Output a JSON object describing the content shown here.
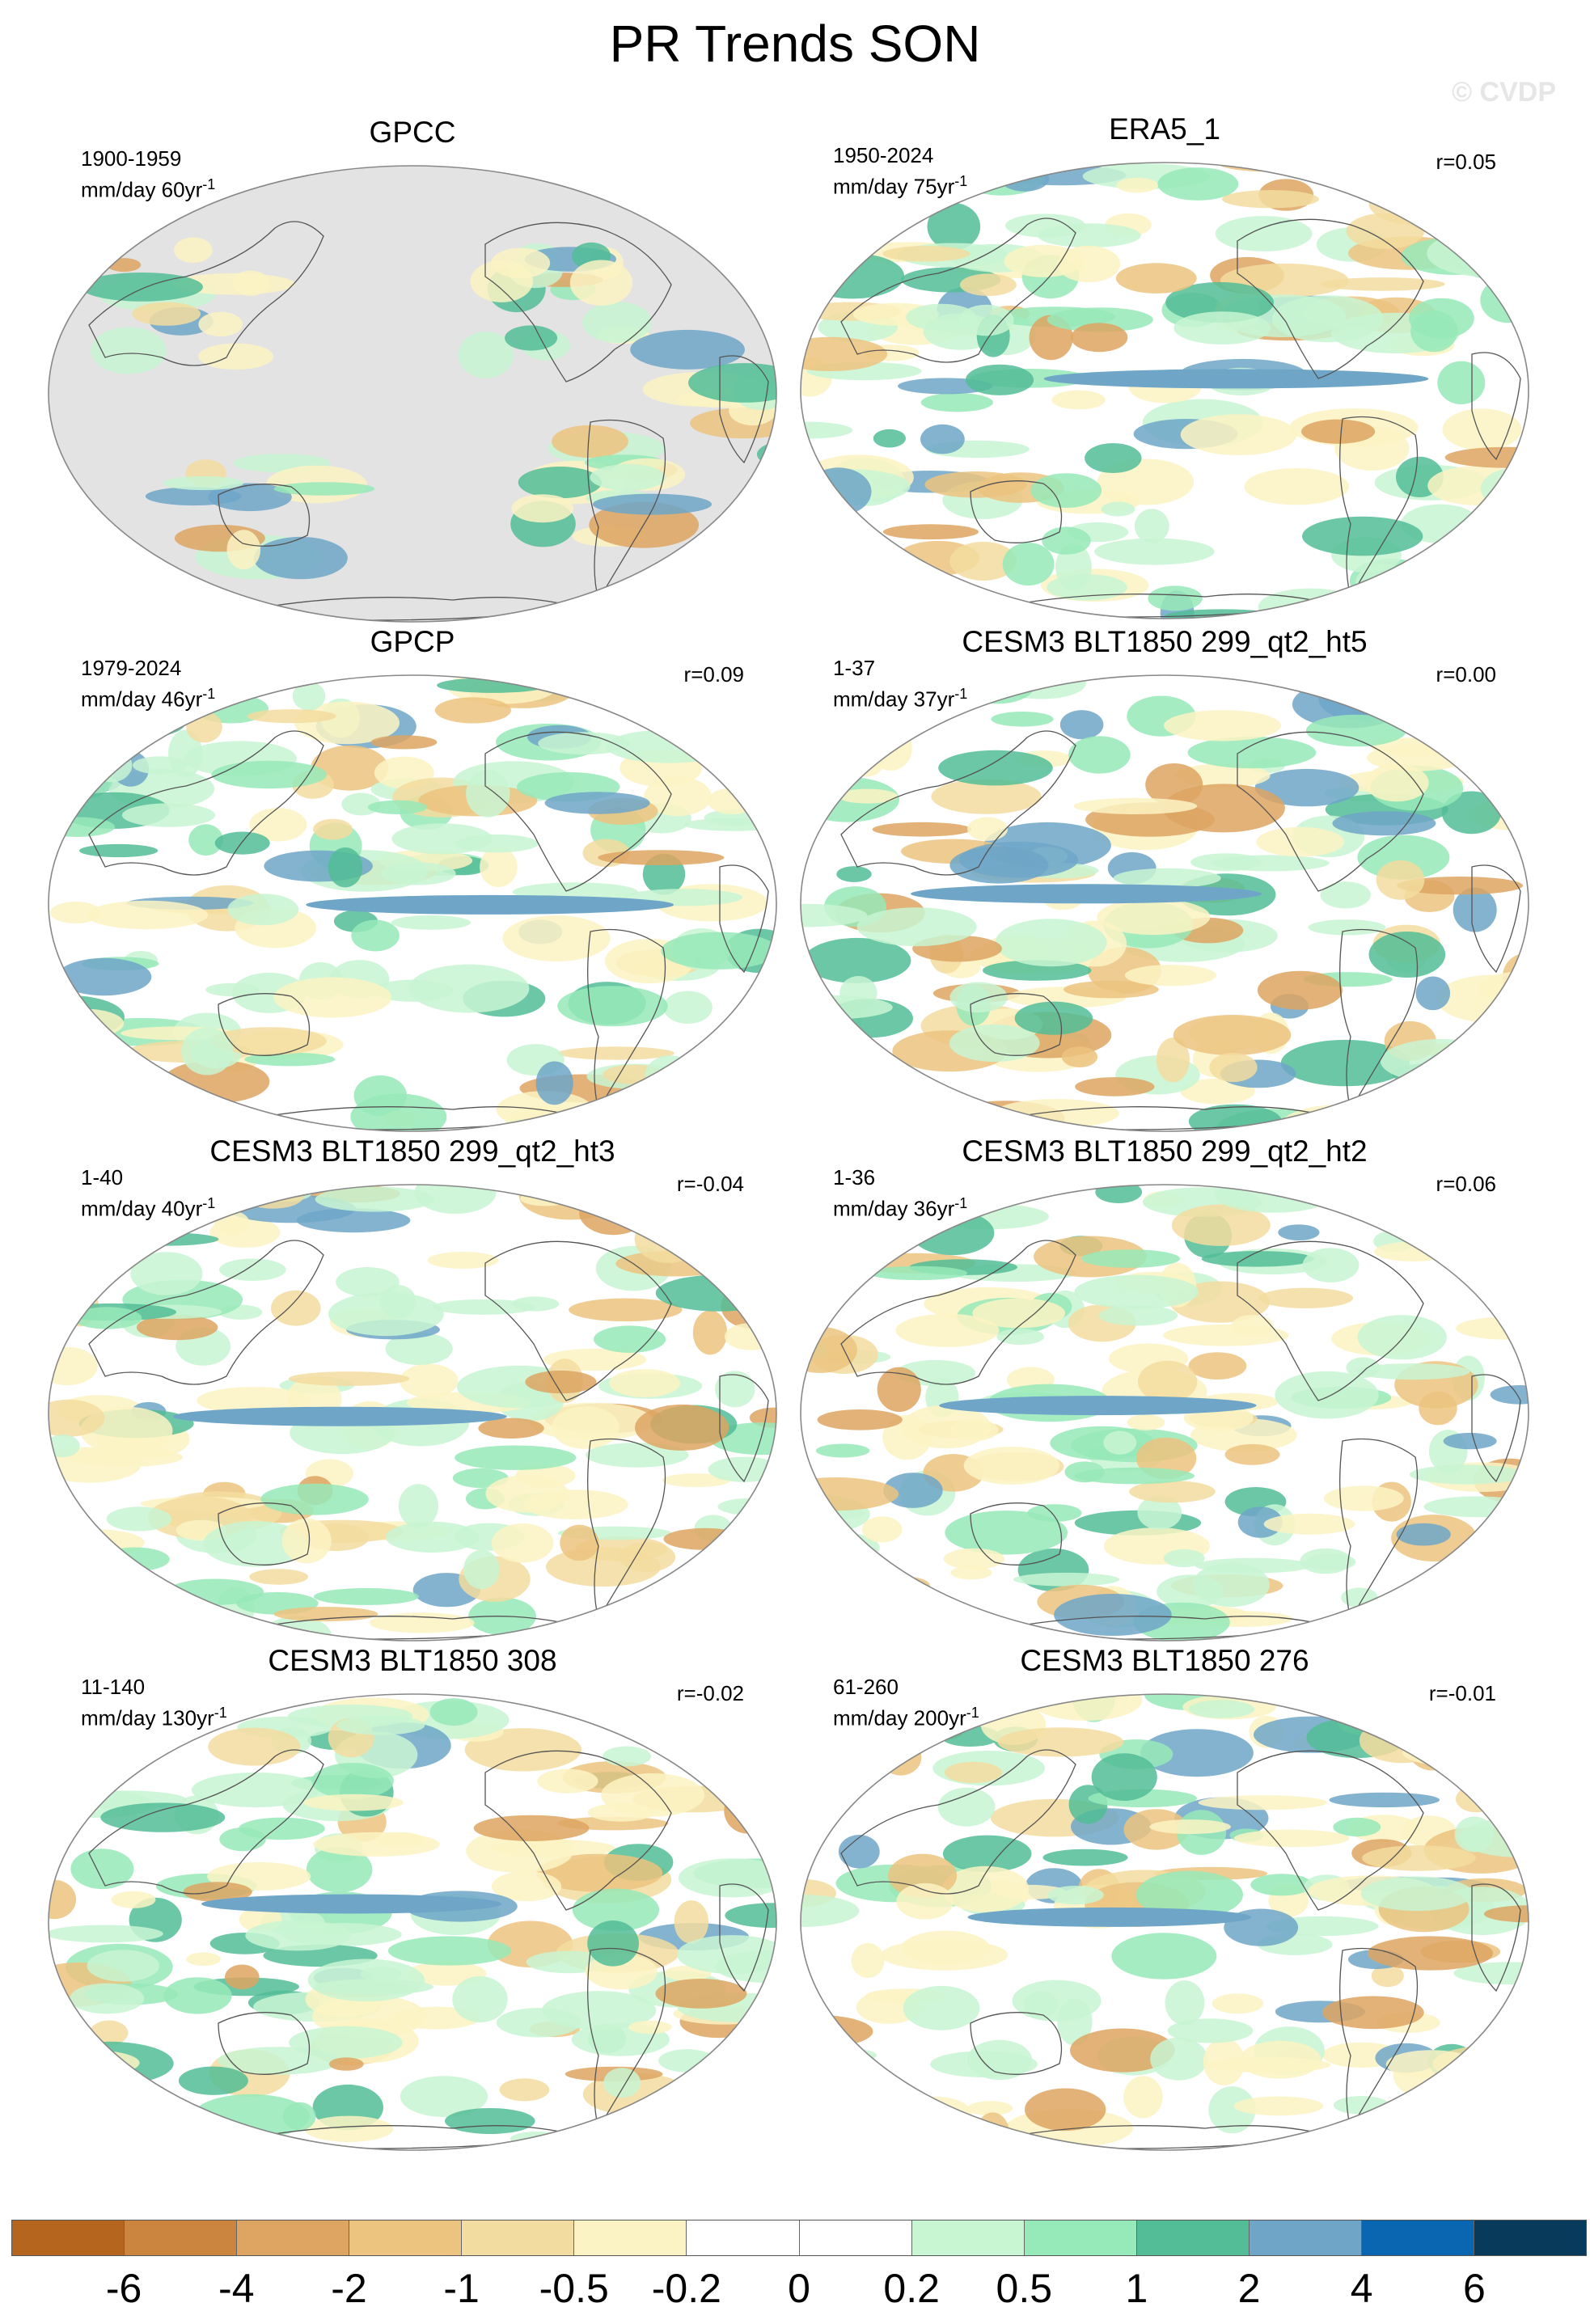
{
  "title": "PR Trends SON",
  "watermark": "© CVDP",
  "panels": [
    {
      "title": "GPCC",
      "period": "1900-1959",
      "units": "mm/day 60yr",
      "corr": "",
      "missing_ocean": true
    },
    {
      "title": "ERA5_1",
      "period": "1950-2024",
      "units": "mm/day 75yr",
      "corr": "r=0.05",
      "missing_ocean": false
    },
    {
      "title": "GPCP",
      "period": "1979-2024",
      "units": "mm/day 46yr",
      "corr": "r=0.09",
      "missing_ocean": false
    },
    {
      "title": "CESM3 BLT1850 299_qt2_ht5",
      "period": "1-37",
      "units": "mm/day 37yr",
      "corr": "r=0.00",
      "missing_ocean": false
    },
    {
      "title": "CESM3 BLT1850 299_qt2_ht3",
      "period": "1-40",
      "units": "mm/day 40yr",
      "corr": "r=-0.04",
      "missing_ocean": false
    },
    {
      "title": "CESM3 BLT1850 299_qt2_ht2",
      "period": "1-36",
      "units": "mm/day 36yr",
      "corr": "r=0.06",
      "missing_ocean": false
    },
    {
      "title": "CESM3 BLT1850 308",
      "period": "11-140",
      "units": "mm/day 130yr",
      "corr": "r=-0.02",
      "missing_ocean": false
    },
    {
      "title": "CESM3 BLT1850 276",
      "period": "61-260",
      "units": "mm/day 200yr",
      "corr": "r=-0.01",
      "missing_ocean": false
    }
  ],
  "colorbar": {
    "colors": [
      "#b5651d",
      "#cc853e",
      "#dda462",
      "#ecc37f",
      "#f3dc9f",
      "#fbf3c3",
      "#ffffff",
      "#ffffff",
      "#c8f5d2",
      "#96e9b8",
      "#52bd96",
      "#6fa6c8",
      "#0a66b0",
      "#083a5c"
    ],
    "labels": [
      "-6",
      "-4",
      "-2",
      "-1",
      "-0.5",
      "-0.2",
      "0",
      "0.2",
      "0.5",
      "1",
      "2",
      "4",
      "6"
    ]
  },
  "colors": {
    "land_missing": "#e3e3e3",
    "wet": "#96e9b8",
    "dry": "#f3dc9f"
  }
}
